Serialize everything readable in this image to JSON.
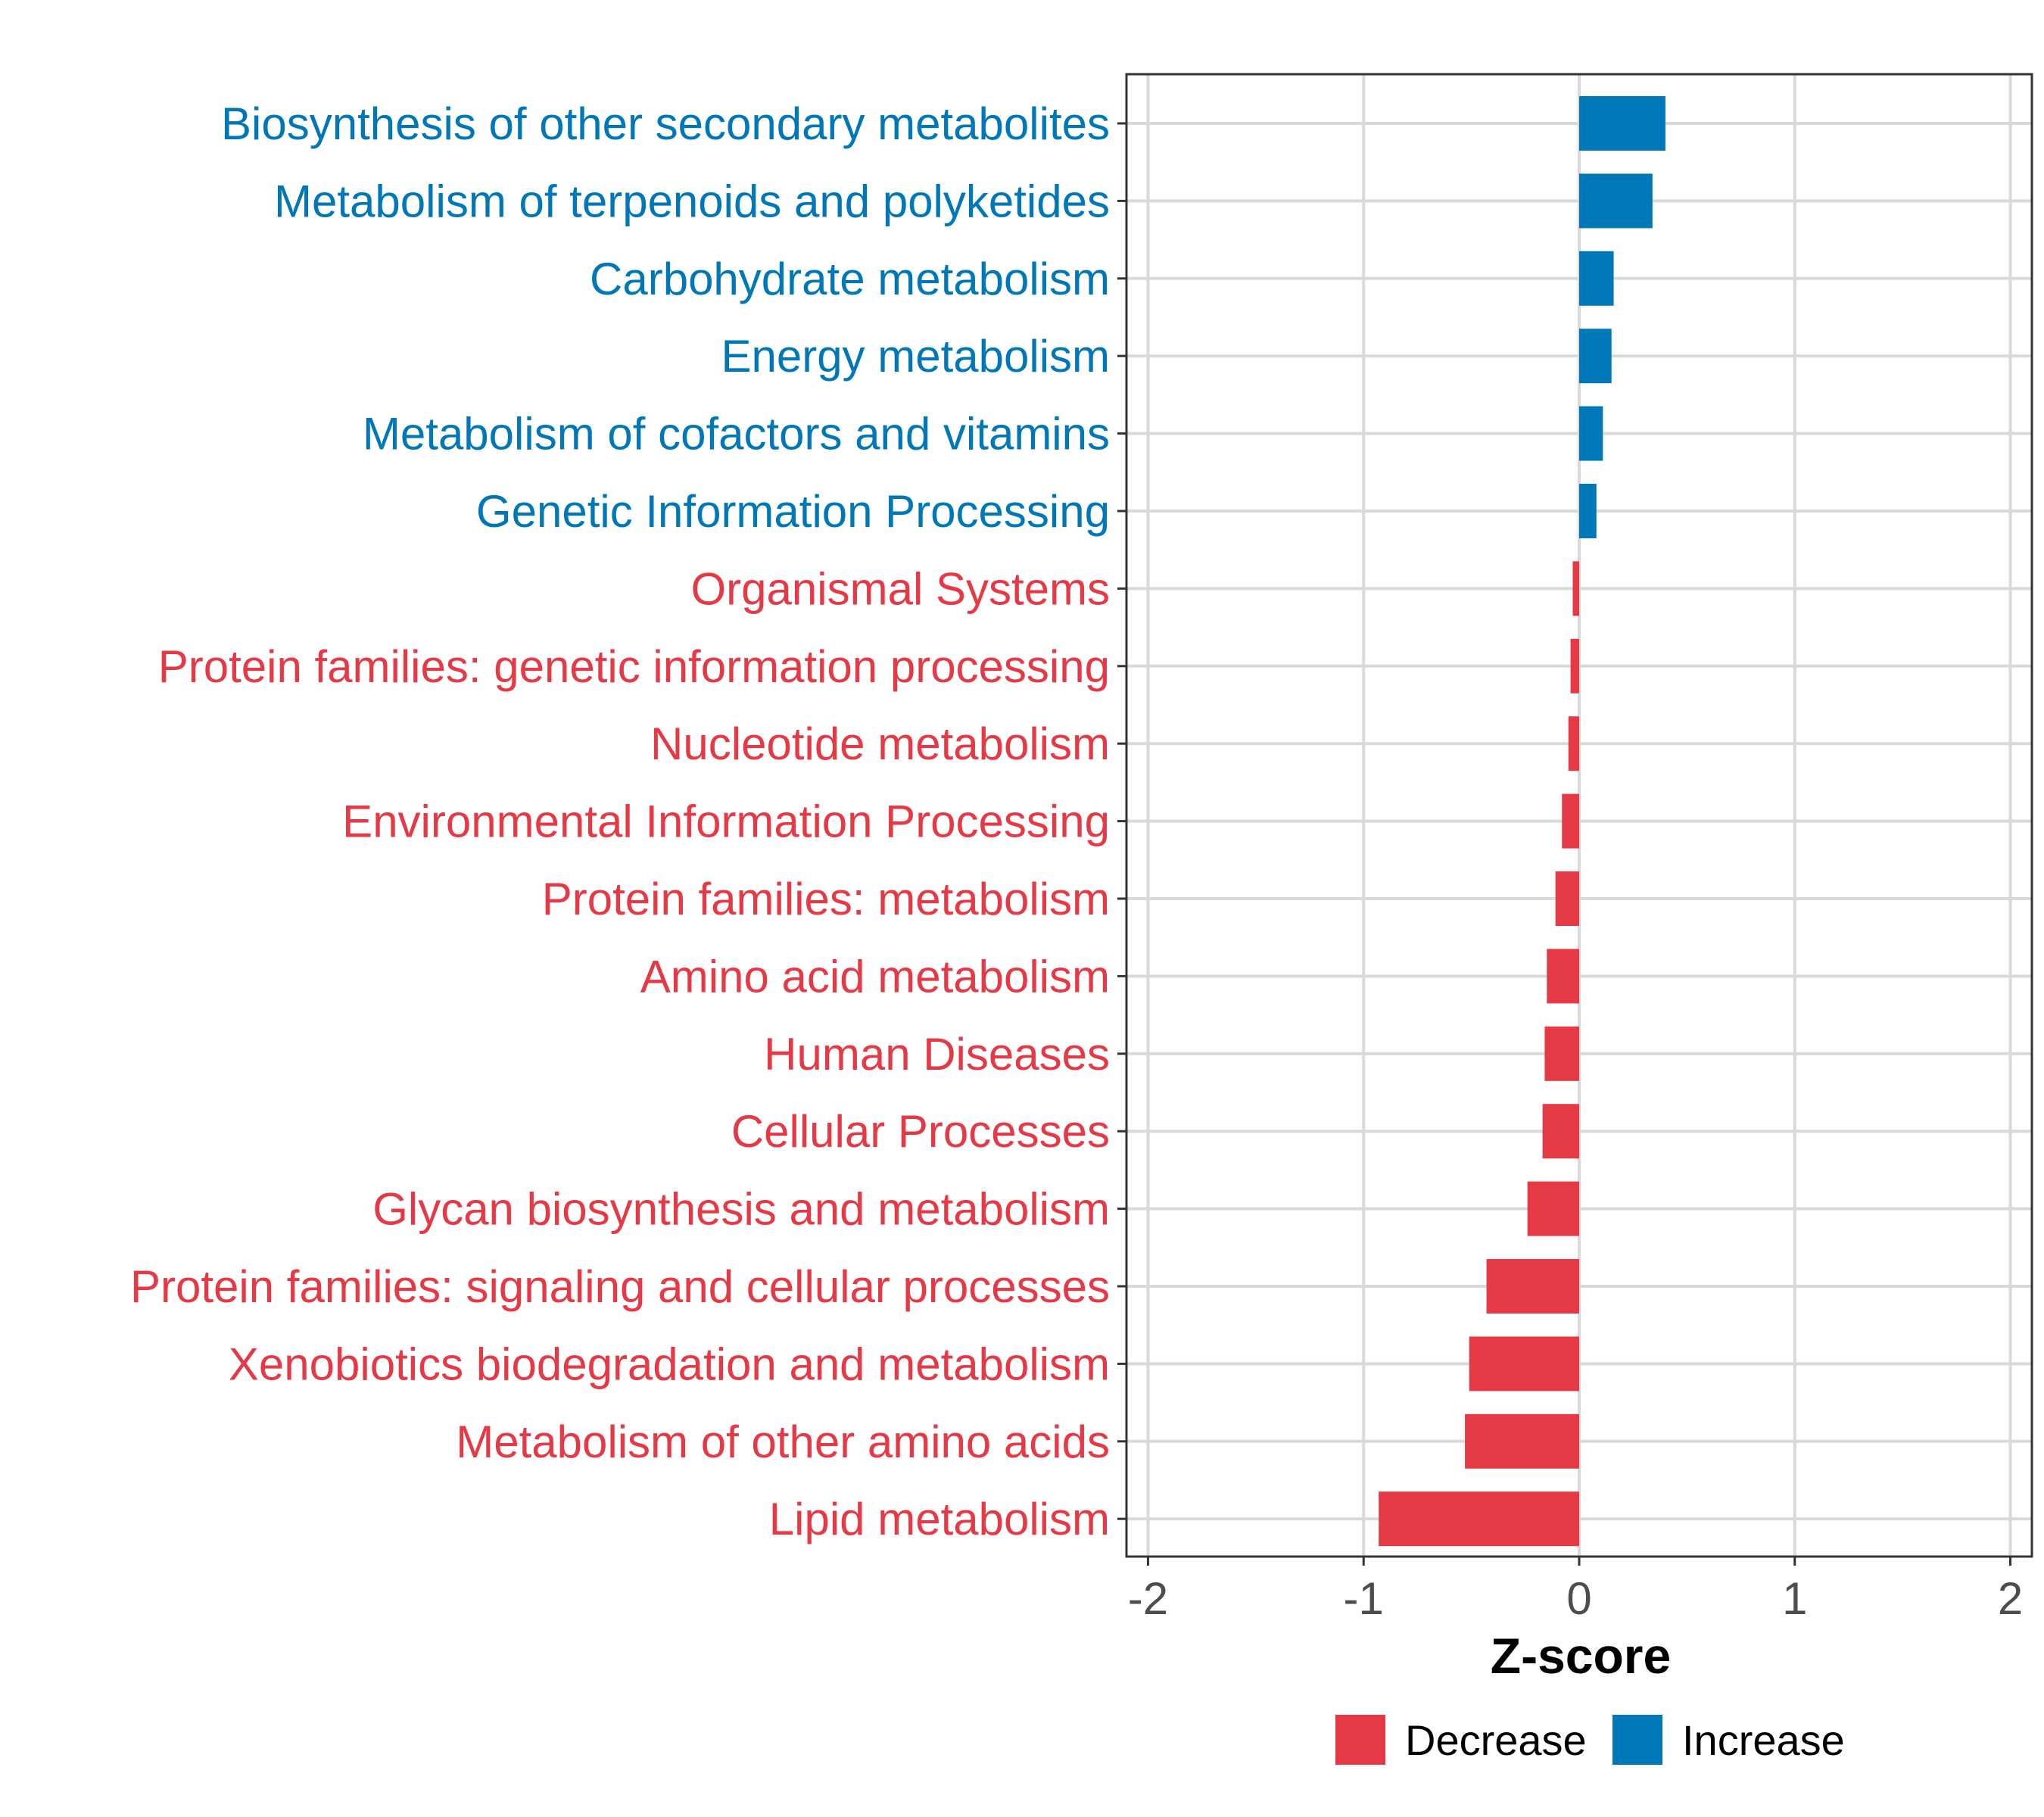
{
  "chart_data": {
    "type": "bar",
    "orientation": "horizontal",
    "title": "",
    "xlabel": "Z-score",
    "ylabel": "",
    "xlim": [
      -2.1,
      2.1
    ],
    "xticks": [
      -2,
      -1,
      0,
      1,
      2
    ],
    "xtick_labels": [
      "-2",
      "-1",
      "0",
      "1",
      "2"
    ],
    "grid": true,
    "legend_position": "bottom",
    "categories": [
      "Biosynthesis of other secondary metabolites",
      "Metabolism of terpenoids and polyketides",
      "Carbohydrate metabolism",
      "Energy metabolism",
      "Metabolism of cofactors and vitamins",
      "Genetic Information Processing",
      "Organismal Systems",
      "Protein families: genetic information processing",
      "Nucleotide metabolism",
      "Environmental Information Processing",
      "Protein families: metabolism",
      "Amino acid metabolism",
      "Human Diseases",
      "Cellular Processes",
      "Glycan biosynthesis and metabolism",
      "Protein families: signaling and cellular processes",
      "Xenobiotics biodegradation and metabolism",
      "Metabolism of other amino acids",
      "Lipid metabolism"
    ],
    "values": [
      0.4,
      0.34,
      0.16,
      0.15,
      0.11,
      0.08,
      -0.03,
      -0.04,
      -0.05,
      -0.08,
      -0.11,
      -0.15,
      -0.16,
      -0.17,
      -0.24,
      -0.43,
      -0.51,
      -0.53,
      -0.93
    ],
    "series": [
      {
        "name": "Decrease",
        "color": "#e63946"
      },
      {
        "name": "Increase",
        "color": "#0077b6"
      }
    ],
    "legend": [
      "Decrease",
      "Increase"
    ]
  },
  "colors": {
    "increase": "#0077b6",
    "decrease": "#e63946",
    "grid": "#d9d9d9",
    "panel_border": "#333333"
  }
}
